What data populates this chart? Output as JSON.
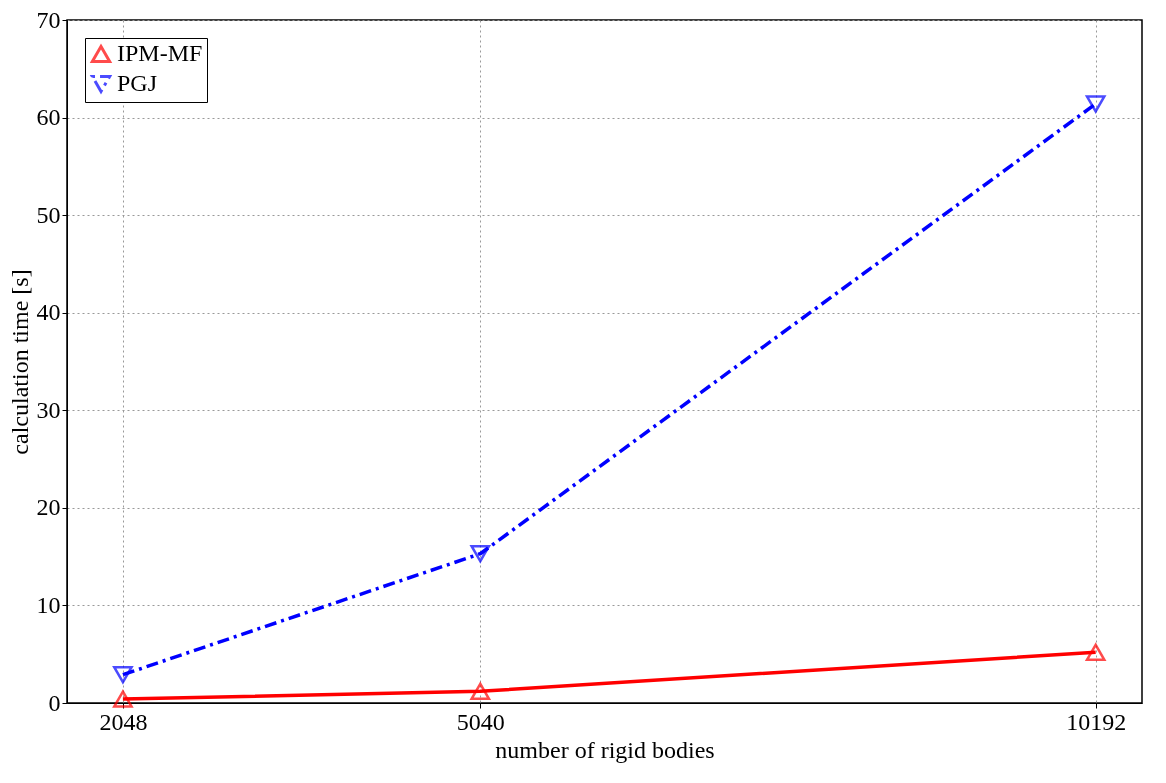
{
  "chart_data": {
    "type": "line",
    "xlabel": "number of rigid bodies",
    "ylabel": "calculation time [s]",
    "x": [
      2048,
      5040,
      10192
    ],
    "xlim": [
      1580,
      10580
    ],
    "xticks": [
      2048,
      5040,
      10192
    ],
    "ylim": [
      0,
      70
    ],
    "yticks": [
      0,
      10,
      20,
      30,
      40,
      50,
      60,
      70
    ],
    "grid": true,
    "legend": "top left",
    "series": [
      {
        "name": "IPM-MF",
        "color": "#ff0000",
        "values": [
          0.4,
          1.2,
          5.2
        ],
        "marker": "triangle",
        "line_style": "solid"
      },
      {
        "name": "PGJ",
        "color": "#0000ff",
        "values": [
          2.9,
          15.3,
          61.4
        ],
        "marker": "triangle_down",
        "line_style": "dashdot"
      }
    ]
  }
}
